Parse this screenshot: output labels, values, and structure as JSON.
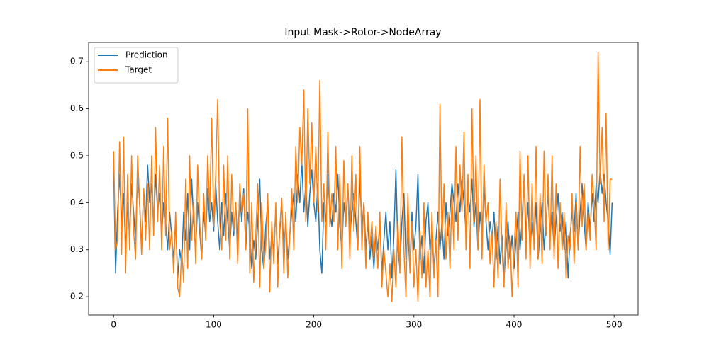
{
  "chart_data": {
    "type": "line",
    "title": "Input Mask->Rotor->NodeArray",
    "x": [
      0,
      2,
      4,
      6,
      8,
      10,
      12,
      14,
      16,
      18,
      20,
      22,
      24,
      26,
      28,
      30,
      32,
      34,
      36,
      38,
      40,
      42,
      44,
      46,
      48,
      50,
      52,
      54,
      56,
      58,
      60,
      62,
      64,
      66,
      68,
      70,
      72,
      74,
      76,
      78,
      80,
      82,
      84,
      86,
      88,
      90,
      92,
      94,
      96,
      98,
      100,
      102,
      104,
      106,
      108,
      110,
      112,
      114,
      116,
      118,
      120,
      122,
      124,
      126,
      128,
      130,
      132,
      134,
      136,
      138,
      140,
      142,
      144,
      146,
      148,
      150,
      152,
      154,
      156,
      158,
      160,
      162,
      164,
      166,
      168,
      170,
      172,
      174,
      176,
      178,
      180,
      182,
      184,
      186,
      188,
      190,
      192,
      194,
      196,
      198,
      200,
      202,
      204,
      206,
      208,
      210,
      212,
      214,
      216,
      218,
      220,
      222,
      224,
      226,
      228,
      230,
      232,
      234,
      236,
      238,
      240,
      242,
      244,
      246,
      248,
      250,
      252,
      254,
      256,
      258,
      260,
      262,
      264,
      266,
      268,
      270,
      272,
      274,
      276,
      278,
      280,
      282,
      284,
      286,
      288,
      290,
      292,
      294,
      296,
      298,
      300,
      302,
      304,
      306,
      308,
      310,
      312,
      314,
      316,
      318,
      320,
      322,
      324,
      326,
      328,
      330,
      332,
      334,
      336,
      338,
      340,
      342,
      344,
      346,
      348,
      350,
      352,
      354,
      356,
      358,
      360,
      362,
      364,
      366,
      368,
      370,
      372,
      374,
      376,
      378,
      380,
      382,
      384,
      386,
      388,
      390,
      392,
      394,
      396,
      398,
      400,
      402,
      404,
      406,
      408,
      410,
      412,
      414,
      416,
      418,
      420,
      422,
      424,
      426,
      428,
      430,
      432,
      434,
      436,
      438,
      440,
      442,
      444,
      446,
      448,
      450,
      452,
      454,
      456,
      458,
      460,
      462,
      464,
      466,
      468,
      470,
      472,
      474,
      476,
      478,
      480,
      482,
      484,
      486,
      488,
      490,
      492,
      494,
      496,
      498
    ],
    "series": [
      {
        "name": "Prediction",
        "color": "#1f77b4",
        "values": [
          0.48,
          0.25,
          0.38,
          0.46,
          0.36,
          0.42,
          0.3,
          0.4,
          0.33,
          0.44,
          0.38,
          0.32,
          0.47,
          0.4,
          0.3,
          0.43,
          0.36,
          0.48,
          0.4,
          0.44,
          0.35,
          0.46,
          0.38,
          0.42,
          0.33,
          0.4,
          0.36,
          0.3,
          0.38,
          0.33,
          0.28,
          0.36,
          0.24,
          0.3,
          0.27,
          0.38,
          0.32,
          0.42,
          0.3,
          0.45,
          0.36,
          0.3,
          0.4,
          0.34,
          0.28,
          0.38,
          0.33,
          0.43,
          0.36,
          0.4,
          0.34,
          0.44,
          0.36,
          0.3,
          0.4,
          0.33,
          0.42,
          0.36,
          0.3,
          0.38,
          0.33,
          0.4,
          0.31,
          0.42,
          0.36,
          0.43,
          0.3,
          0.38,
          0.34,
          0.26,
          0.32,
          0.28,
          0.36,
          0.45,
          0.3,
          0.26,
          0.35,
          0.4,
          0.28,
          0.33,
          0.3,
          0.38,
          0.27,
          0.34,
          0.4,
          0.3,
          0.36,
          0.28,
          0.33,
          0.38,
          0.42,
          0.36,
          0.46,
          0.4,
          0.49,
          0.38,
          0.44,
          0.35,
          0.42,
          0.47,
          0.4,
          0.36,
          0.44,
          0.3,
          0.25,
          0.4,
          0.36,
          0.46,
          0.38,
          0.35,
          0.42,
          0.38,
          0.46,
          0.35,
          0.3,
          0.4,
          0.36,
          0.44,
          0.33,
          0.38,
          0.42,
          0.36,
          0.3,
          0.46,
          0.34,
          0.4,
          0.3,
          0.36,
          0.28,
          0.33,
          0.26,
          0.34,
          0.3,
          0.36,
          0.25,
          0.32,
          0.38,
          0.3,
          0.36,
          0.24,
          0.33,
          0.47,
          0.3,
          0.26,
          0.36,
          0.42,
          0.28,
          0.34,
          0.26,
          0.38,
          0.3,
          0.35,
          0.46,
          0.28,
          0.33,
          0.25,
          0.36,
          0.4,
          0.3,
          0.34,
          0.26,
          0.32,
          0.38,
          0.3,
          0.36,
          0.28,
          0.4,
          0.33,
          0.38,
          0.44,
          0.4,
          0.36,
          0.44,
          0.38,
          0.45,
          0.4,
          0.34,
          0.42,
          0.38,
          0.45,
          0.35,
          0.4,
          0.3,
          0.38,
          0.33,
          0.44,
          0.36,
          0.3,
          0.36,
          0.32,
          0.38,
          0.28,
          0.35,
          0.27,
          0.33,
          0.24,
          0.3,
          0.36,
          0.28,
          0.33,
          0.26,
          0.32,
          0.38,
          0.3,
          0.36,
          0.45,
          0.33,
          0.4,
          0.3,
          0.36,
          0.32,
          0.4,
          0.28,
          0.34,
          0.4,
          0.3,
          0.36,
          0.42,
          0.33,
          0.38,
          0.3,
          0.36,
          0.42,
          0.34,
          0.38,
          0.3,
          0.36,
          0.24,
          0.33,
          0.38,
          0.34,
          0.42,
          0.3,
          0.38,
          0.44,
          0.36,
          0.3,
          0.4,
          0.34,
          0.42,
          0.36,
          0.44,
          0.4,
          0.47,
          0.42,
          0.46,
          0.4,
          0.36,
          0.29,
          0.4
        ]
      },
      {
        "name": "Target",
        "color": "#ff7f0e",
        "values": [
          0.51,
          0.3,
          0.32,
          0.53,
          0.29,
          0.54,
          0.25,
          0.46,
          0.3,
          0.5,
          0.34,
          0.28,
          0.5,
          0.4,
          0.29,
          0.43,
          0.32,
          0.44,
          0.3,
          0.5,
          0.33,
          0.56,
          0.36,
          0.48,
          0.3,
          0.52,
          0.33,
          0.58,
          0.3,
          0.34,
          0.25,
          0.38,
          0.22,
          0.2,
          0.3,
          0.23,
          0.45,
          0.26,
          0.5,
          0.32,
          0.4,
          0.27,
          0.48,
          0.36,
          0.28,
          0.42,
          0.32,
          0.5,
          0.38,
          0.58,
          0.35,
          0.46,
          0.62,
          0.36,
          0.3,
          0.48,
          0.32,
          0.5,
          0.28,
          0.46,
          0.34,
          0.4,
          0.27,
          0.44,
          0.38,
          0.42,
          0.3,
          0.6,
          0.25,
          0.4,
          0.23,
          0.33,
          0.44,
          0.22,
          0.4,
          0.26,
          0.31,
          0.42,
          0.21,
          0.36,
          0.27,
          0.4,
          0.22,
          0.35,
          0.41,
          0.25,
          0.38,
          0.24,
          0.33,
          0.43,
          0.3,
          0.52,
          0.4,
          0.56,
          0.48,
          0.64,
          0.36,
          0.6,
          0.44,
          0.57,
          0.4,
          0.52,
          0.38,
          0.66,
          0.36,
          0.44,
          0.3,
          0.55,
          0.35,
          0.42,
          0.36,
          0.52,
          0.3,
          0.46,
          0.26,
          0.49,
          0.35,
          0.44,
          0.28,
          0.5,
          0.34,
          0.46,
          0.3,
          0.52,
          0.3,
          0.4,
          0.26,
          0.38,
          0.3,
          0.36,
          0.28,
          0.35,
          0.26,
          0.38,
          0.22,
          0.3,
          0.25,
          0.2,
          0.27,
          0.19,
          0.3,
          0.22,
          0.36,
          0.25,
          0.54,
          0.3,
          0.2,
          0.42,
          0.25,
          0.36,
          0.22,
          0.3,
          0.19,
          0.34,
          0.24,
          0.4,
          0.22,
          0.3,
          0.2,
          0.38,
          0.24,
          0.32,
          0.2,
          0.61,
          0.32,
          0.44,
          0.28,
          0.38,
          0.26,
          0.42,
          0.3,
          0.52,
          0.32,
          0.48,
          0.38,
          0.55,
          0.3,
          0.46,
          0.26,
          0.6,
          0.36,
          0.5,
          0.3,
          0.62,
          0.28,
          0.48,
          0.36,
          0.4,
          0.27,
          0.34,
          0.22,
          0.36,
          0.24,
          0.45,
          0.3,
          0.22,
          0.4,
          0.26,
          0.33,
          0.2,
          0.3,
          0.38,
          0.22,
          0.51,
          0.32,
          0.46,
          0.28,
          0.5,
          0.26,
          0.44,
          0.3,
          0.52,
          0.28,
          0.42,
          0.27,
          0.51,
          0.33,
          0.46,
          0.3,
          0.5,
          0.28,
          0.44,
          0.26,
          0.4,
          0.3,
          0.38,
          0.24,
          0.33,
          0.3,
          0.42,
          0.27,
          0.4,
          0.3,
          0.52,
          0.35,
          0.44,
          0.3,
          0.38,
          0.32,
          0.46,
          0.4,
          0.3,
          0.72,
          0.44,
          0.56,
          0.36,
          0.59,
          0.3,
          0.45,
          0.45
        ]
      }
    ],
    "xlim": [
      -24.95,
      523.95
    ],
    "xticks": [
      0,
      100,
      200,
      300,
      400,
      500
    ],
    "ylim": [
      0.161,
      0.741
    ],
    "yticks": [
      0.2,
      0.3,
      0.4,
      0.5,
      0.6,
      0.7
    ],
    "legend": "upper left",
    "grid": false
  }
}
